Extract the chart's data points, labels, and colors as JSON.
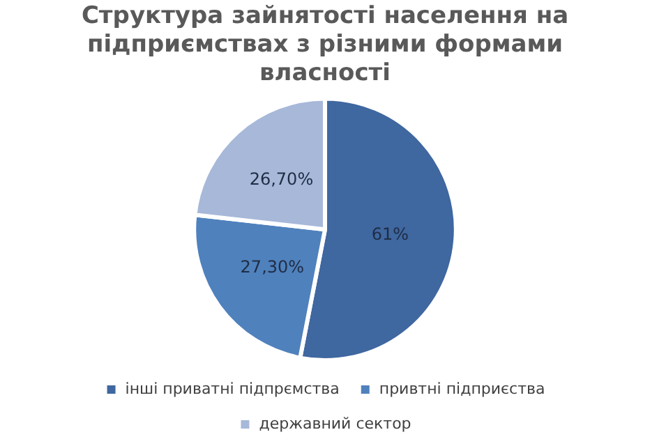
{
  "chart_data": {
    "type": "pie",
    "title": "Структура зайнятості населення на підприємствах з різними формами власності",
    "categories": [
      "інші приватні підпрємства",
      "привтні підприєства",
      "державний сектор"
    ],
    "values": [
      61,
      27.3,
      26.7
    ],
    "value_labels": [
      "61%",
      "27,30%",
      "26,70%"
    ],
    "colors": [
      "#3f67a0",
      "#4f81bd",
      "#a7b8d9"
    ],
    "legend": "bottom"
  }
}
